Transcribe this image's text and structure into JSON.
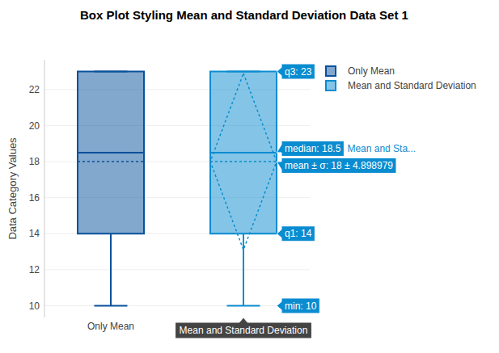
{
  "chart_data": {
    "type": "box",
    "title": "Box Plot Styling Mean and Standard Deviation Data Set 1",
    "ylabel": "Data Category Values",
    "categories": [
      "Only Mean",
      "Mean and Standard Deviation"
    ],
    "series": [
      {
        "name": "Only Mean",
        "color": "#08519c",
        "min": 10,
        "q1": 14,
        "median": 18.5,
        "q3": 23,
        "max": 23,
        "mean": 18
      },
      {
        "name": "Mean and Standard Deviation",
        "color": "#0a8cd0",
        "min": 10,
        "q1": 14,
        "median": 18.5,
        "q3": 23,
        "max": 23,
        "mean": 18,
        "sd": 4.898979
      }
    ],
    "ylim": [
      9.35,
      23.65
    ],
    "yticks": [
      10,
      12,
      14,
      16,
      18,
      20,
      22
    ],
    "grid": true,
    "legend": "top-right",
    "hover": {
      "series": 1,
      "labels": [
        {
          "text": "q3: 23",
          "y": 23
        },
        {
          "text": "median: 18.5",
          "y": 18.5,
          "name": "Mean and Sta..."
        },
        {
          "text": "mean ± σ: 18 ± 4.898979",
          "y": 18
        },
        {
          "text": "q1: 14",
          "y": 14
        },
        {
          "text": "min: 10",
          "y": 10
        }
      ]
    }
  }
}
